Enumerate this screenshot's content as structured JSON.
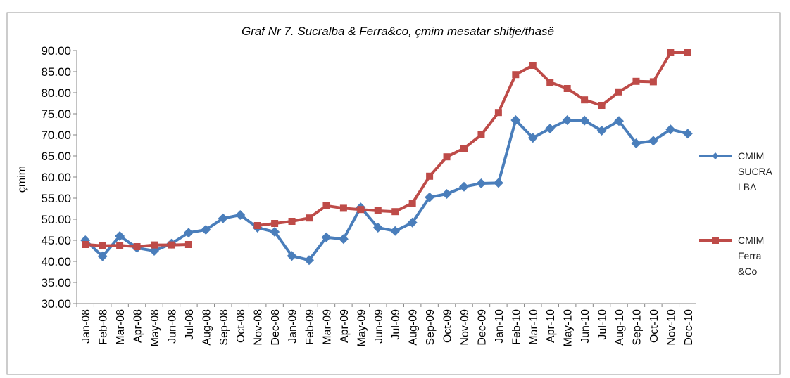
{
  "chart_data": {
    "type": "line",
    "title": "Graf Nr 7. Sucralba & Ferra&co, çmim mesatar shitje/thasë",
    "y_label": "çmim",
    "categories": [
      "Jan-08",
      "Feb-08",
      "Mar-08",
      "Apr-08",
      "May-08",
      "Jun-08",
      "Jul-08",
      "Aug-08",
      "Sep-08",
      "Oct-08",
      "Nov-08",
      "Dec-08",
      "Jan-09",
      "Feb-09",
      "Mar-09",
      "Apr-09",
      "May-09",
      "Jun-09",
      "Jul-09",
      "Aug-09",
      "Sep-09",
      "Oct-09",
      "Nov-09",
      "Dec-09",
      "Jan-10",
      "Feb-10",
      "Mar-10",
      "Apr-10",
      "May-10",
      "Jun-10",
      "Jul-10",
      "Aug-10",
      "Sep-10",
      "Oct-10",
      "Nov-10",
      "Dec-10"
    ],
    "series": [
      {
        "name": "CMIM SUCRALBA",
        "color": "#4a7ebb",
        "marker": "diamond",
        "values": [
          45.0,
          41.2,
          46.0,
          43.2,
          42.5,
          44.2,
          46.8,
          47.5,
          50.2,
          51.0,
          48.0,
          47.0,
          41.3,
          40.3,
          45.7,
          45.3,
          52.8,
          48.0,
          47.2,
          49.2,
          55.2,
          56.0,
          57.7,
          58.5,
          58.6,
          73.5,
          69.3,
          71.5,
          73.5,
          73.4,
          71.0,
          73.3,
          68.0,
          68.6,
          71.3,
          70.3
        ]
      },
      {
        "name": "CMIM Ferra &Co",
        "color": "#be4b48",
        "marker": "square",
        "values": [
          44.0,
          43.7,
          43.8,
          43.5,
          43.9,
          43.9,
          44.0,
          null,
          null,
          null,
          48.5,
          49.0,
          49.5,
          50.3,
          53.2,
          52.6,
          52.3,
          52.0,
          51.8,
          53.8,
          60.2,
          64.8,
          66.8,
          70.0,
          75.3,
          84.3,
          86.5,
          82.5,
          81.0,
          78.3,
          77.0,
          80.2,
          82.7,
          82.6,
          89.5,
          89.5
        ]
      }
    ],
    "ylim": [
      30,
      90
    ],
    "yticks": [
      {
        "value": 30,
        "label": "30.00"
      },
      {
        "value": 35,
        "label": "35.00"
      },
      {
        "value": 40,
        "label": "40.00"
      },
      {
        "value": 45,
        "label": "45.00"
      },
      {
        "value": 50,
        "label": "50.00"
      },
      {
        "value": 55,
        "label": "55.00"
      },
      {
        "value": 60,
        "label": "60.00"
      },
      {
        "value": 65,
        "label": "65.00"
      },
      {
        "value": 70,
        "label": "70.00"
      },
      {
        "value": 75,
        "label": "75.00"
      },
      {
        "value": 80,
        "label": "80.00"
      },
      {
        "value": 85,
        "label": "85.00"
      },
      {
        "value": 90,
        "label": "90.00"
      }
    ],
    "grid": false,
    "legend": "right"
  }
}
